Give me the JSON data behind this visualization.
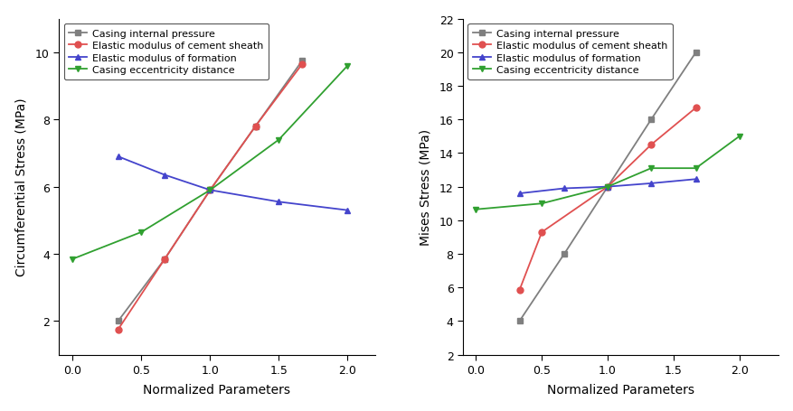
{
  "left_chart": {
    "title": "",
    "xlabel": "Normalized Parameters",
    "ylabel": "Circumferential Stress (MPa)",
    "ylim": [
      1,
      11
    ],
    "xlim": [
      -0.1,
      2.2
    ],
    "yticks": [
      2,
      4,
      6,
      8,
      10
    ],
    "xticks": [
      0.0,
      0.5,
      1.0,
      1.5,
      2.0
    ],
    "series": [
      {
        "label": "Casing internal pressure",
        "color": "#7f7f7f",
        "marker": "s",
        "x": [
          0.33,
          0.67,
          1.0,
          1.33,
          1.67
        ],
        "y": [
          2.0,
          3.85,
          5.9,
          7.8,
          9.75
        ]
      },
      {
        "label": "Elastic modulus of cement sheath",
        "color": "#e05050",
        "marker": "o",
        "x": [
          0.33,
          0.67,
          1.0,
          1.33,
          1.67
        ],
        "y": [
          1.75,
          3.85,
          5.9,
          7.8,
          9.65
        ]
      },
      {
        "label": "Elastic modulus of formation",
        "color": "#4444cc",
        "marker": "^",
        "x": [
          0.33,
          0.67,
          1.0,
          1.5,
          2.0
        ],
        "y": [
          6.9,
          6.35,
          5.9,
          5.55,
          5.3
        ]
      },
      {
        "label": "Casing eccentricity distance",
        "color": "#30a030",
        "marker": "v",
        "x": [
          0.0,
          0.5,
          1.0,
          1.5,
          2.0
        ],
        "y": [
          3.85,
          4.65,
          5.9,
          7.4,
          9.6
        ]
      }
    ]
  },
  "right_chart": {
    "title": "",
    "xlabel": "Normalized Parameters",
    "ylabel": "Mises Stress (MPa)",
    "ylim": [
      2,
      22
    ],
    "xlim": [
      -0.1,
      2.3
    ],
    "yticks": [
      2,
      4,
      6,
      8,
      10,
      12,
      14,
      16,
      18,
      20,
      22
    ],
    "xticks": [
      0.0,
      0.5,
      1.0,
      1.5,
      2.0
    ],
    "series": [
      {
        "label": "Casing internal pressure",
        "color": "#7f7f7f",
        "marker": "s",
        "x": [
          0.33,
          0.67,
          1.0,
          1.33,
          1.67
        ],
        "y": [
          4.0,
          8.0,
          12.0,
          16.0,
          20.0
        ]
      },
      {
        "label": "Elastic modulus of cement sheath",
        "color": "#e05050",
        "marker": "o",
        "x": [
          0.33,
          0.5,
          1.0,
          1.33,
          1.67
        ],
        "y": [
          5.85,
          9.3,
          12.0,
          14.5,
          16.7
        ]
      },
      {
        "label": "Elastic modulus of formation",
        "color": "#4444cc",
        "marker": "^",
        "x": [
          0.33,
          0.67,
          1.0,
          1.33,
          1.67
        ],
        "y": [
          11.6,
          11.9,
          12.0,
          12.2,
          12.45
        ]
      },
      {
        "label": "Casing eccentricity distance",
        "color": "#30a030",
        "marker": "v",
        "x": [
          0.0,
          0.5,
          1.0,
          1.33,
          1.67,
          2.0
        ],
        "y": [
          10.65,
          11.0,
          12.0,
          13.1,
          13.1,
          15.0
        ]
      }
    ]
  },
  "legend_fontsize": 8,
  "axis_fontsize": 10,
  "tick_fontsize": 9,
  "marker_size": 5,
  "line_width": 1.3,
  "background_color": "#ffffff"
}
